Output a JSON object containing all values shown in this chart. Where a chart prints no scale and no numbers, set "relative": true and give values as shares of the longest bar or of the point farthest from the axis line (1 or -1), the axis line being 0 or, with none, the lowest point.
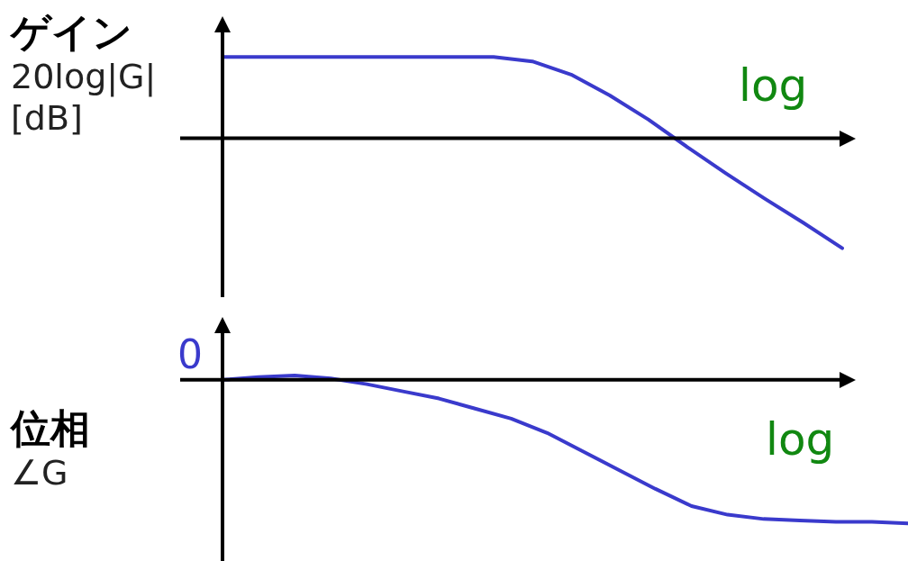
{
  "chart_data": [
    {
      "type": "line",
      "relative": true,
      "ylabel": "ゲイン\n20log|G|\n[dB]",
      "xlabel": "log",
      "legend": false,
      "categories": [
        null,
        null,
        null,
        null,
        null,
        null,
        null,
        null,
        null,
        null,
        null,
        null,
        null,
        null,
        null,
        null,
        null
      ],
      "series": [
        {
          "color": "#3a3acc",
          "values": [
            0.74,
            0.74,
            0.74,
            0.74,
            0.74,
            0.74,
            0.74,
            0.74,
            0.7,
            0.58,
            0.39,
            0.17,
            -0.08,
            -0.32,
            -0.55,
            -0.77,
            -1
          ]
        }
      ]
    },
    {
      "type": "line",
      "relative": true,
      "ylabel": "位相\n∠G",
      "xlabel": "log",
      "legend": false,
      "annotations": [
        "0"
      ],
      "categories": [
        null,
        null,
        null,
        null,
        null,
        null,
        null,
        null,
        null,
        null,
        null,
        null,
        null,
        null,
        null,
        null,
        null,
        null,
        null,
        null
      ],
      "series": [
        {
          "color": "#3a3acc",
          "values": [
            0,
            0.02,
            0.03,
            0.01,
            -0.03,
            -0.08,
            -0.13,
            -0.2,
            -0.27,
            -0.37,
            -0.5,
            -0.63,
            -0.76,
            -0.88,
            -0.94,
            -0.97,
            -0.98,
            -0.99,
            -0.99,
            -1
          ]
        }
      ]
    }
  ]
}
